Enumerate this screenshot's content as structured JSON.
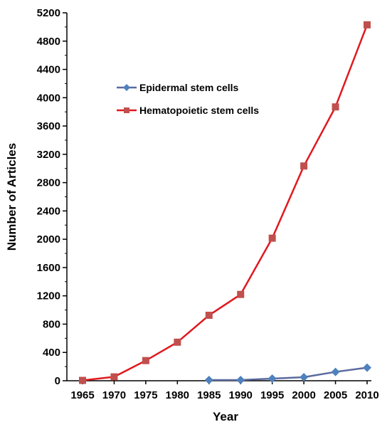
{
  "chart_data": {
    "type": "line",
    "title": "",
    "xlabel": "Year",
    "ylabel": "Number of Articles",
    "x": [
      1965,
      1970,
      1975,
      1980,
      1985,
      1990,
      1995,
      2000,
      2005,
      2010
    ],
    "xticks": [
      "1965",
      "1970",
      "1975",
      "1980",
      "1985",
      "1990",
      "1995",
      "2000",
      "2005",
      "2010"
    ],
    "yticks": [
      "0",
      "400",
      "800",
      "1200",
      "1600",
      "2000",
      "2400",
      "2800",
      "3200",
      "3600",
      "4000",
      "4400",
      "4800",
      "5200"
    ],
    "ylim": [
      0,
      5200
    ],
    "grid": false,
    "legend_position": "upper-left-inside",
    "series": [
      {
        "name": "Epidermal stem cells",
        "color": "#4F81BD",
        "line_color": "#5B6A9E",
        "marker": "diamond",
        "x": [
          1985,
          1990,
          1995,
          2000,
          2005,
          2010
        ],
        "values": [
          10,
          10,
          30,
          50,
          125,
          185
        ]
      },
      {
        "name": "Hematopoietic stem cells",
        "color": "#C0504D",
        "line_color": "#E0191F",
        "marker": "square",
        "x": [
          1965,
          1970,
          1975,
          1980,
          1985,
          1990,
          1995,
          2000,
          2005,
          2010
        ],
        "values": [
          5,
          55,
          285,
          545,
          925,
          1220,
          2015,
          3035,
          3870,
          5030
        ]
      }
    ]
  }
}
